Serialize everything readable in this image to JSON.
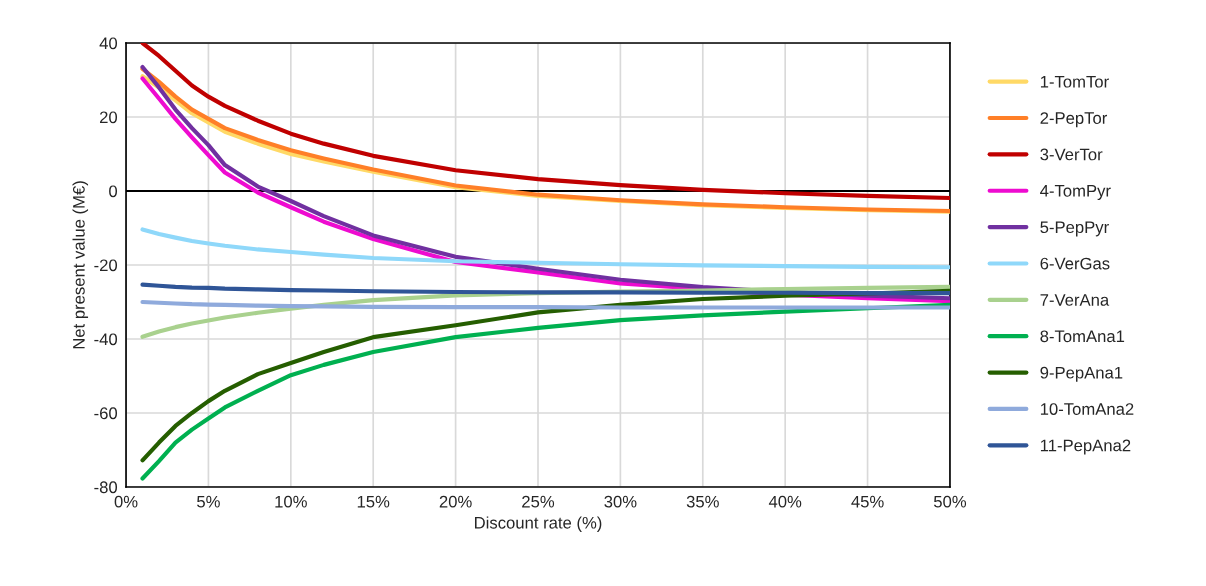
{
  "chart_data": {
    "type": "line",
    "xlabel": "Discount rate (%)",
    "ylabel": "Net present value (M€)",
    "x": [
      1,
      2,
      3,
      4,
      5,
      6,
      8,
      10,
      12,
      15,
      20,
      25,
      30,
      35,
      40,
      45,
      50
    ],
    "xlim": [
      0,
      50
    ],
    "xticks": [
      {
        "value": 0,
        "label": "0%"
      },
      {
        "value": 5,
        "label": "5%"
      },
      {
        "value": 10,
        "label": "10%"
      },
      {
        "value": 15,
        "label": "15%"
      },
      {
        "value": 20,
        "label": "20%"
      },
      {
        "value": 25,
        "label": "25%"
      },
      {
        "value": 30,
        "label": "30%"
      },
      {
        "value": 35,
        "label": "35%"
      },
      {
        "value": 40,
        "label": "40%"
      },
      {
        "value": 45,
        "label": "45%"
      },
      {
        "value": 50,
        "label": "50%"
      }
    ],
    "ylim": [
      -80,
      40
    ],
    "yticks": [
      -80,
      -60,
      -40,
      -20,
      0,
      20,
      40
    ],
    "grid": true,
    "legend": "right",
    "marker": "none",
    "line_style": "solid",
    "ref_lines": [
      {
        "axis": "y",
        "value": 0,
        "color": "#000000"
      }
    ],
    "series": [
      {
        "name": "1-TomTor",
        "color": "#ffd966",
        "values": [
          31,
          28,
          24.5,
          21,
          18.5,
          16,
          12.8,
          10,
          8,
          5.2,
          1,
          -1.3,
          -2.7,
          -3.8,
          -4.6,
          -5.2,
          -5.6
        ]
      },
      {
        "name": "2-PepTor",
        "color": "#ff7f27",
        "values": [
          33,
          29.5,
          25.5,
          22,
          19.5,
          17,
          13.8,
          11,
          8.8,
          5.8,
          1.5,
          -1,
          -2.5,
          -3.6,
          -4.4,
          -5,
          -5.4
        ]
      },
      {
        "name": "3-VerTor",
        "color": "#c00000",
        "values": [
          40,
          36.5,
          32.5,
          28.5,
          25.5,
          23,
          19,
          15.5,
          12.8,
          9.5,
          5.6,
          3.2,
          1.6,
          0.3,
          -0.6,
          -1.3,
          -1.9
        ]
      },
      {
        "name": "4-TomPyr",
        "color": "#ee0bd0",
        "values": [
          30.4,
          25,
          19.5,
          14.5,
          9.7,
          5,
          -0.4,
          -4.4,
          -8.3,
          -13,
          -19.2,
          -22,
          -25,
          -26.5,
          -28,
          -29,
          -29.8
        ]
      },
      {
        "name": "5-PepPyr",
        "color": "#7030a0",
        "values": [
          33.5,
          28,
          22,
          17,
          12.4,
          7,
          1.2,
          -2.7,
          -6.8,
          -12,
          -17.8,
          -21,
          -24,
          -26,
          -27.3,
          -28.3,
          -29
        ]
      },
      {
        "name": "6-VerGas",
        "color": "#8fd8fa",
        "values": [
          -10.4,
          -11.6,
          -12.6,
          -13.5,
          -14.2,
          -14.8,
          -15.8,
          -16.5,
          -17.2,
          -18.1,
          -19,
          -19.4,
          -19.8,
          -20.1,
          -20.3,
          -20.5,
          -20.6
        ]
      },
      {
        "name": "7-VerAna",
        "color": "#a9d18e",
        "values": [
          -39.4,
          -38,
          -36.8,
          -35.8,
          -35,
          -34.2,
          -32.9,
          -31.8,
          -30.8,
          -29.5,
          -28.2,
          -27.6,
          -27.2,
          -26.9,
          -26.5,
          -26.2,
          -25.9
        ]
      },
      {
        "name": "8-TomAna1",
        "color": "#00b050",
        "values": [
          -77.7,
          -73,
          -68,
          -64.5,
          -61.5,
          -58.5,
          -54,
          -49.8,
          -47,
          -43.5,
          -39.5,
          -37,
          -34.9,
          -33.6,
          -32.6,
          -31.7,
          -30.8
        ]
      },
      {
        "name": "9-PepAna1",
        "color": "#255e00",
        "values": [
          -72.8,
          -68,
          -63.5,
          -60,
          -56.8,
          -54,
          -49.5,
          -46.5,
          -43.5,
          -39.5,
          -36.3,
          -32.8,
          -30.8,
          -29.2,
          -28.3,
          -27.7,
          -27
        ]
      },
      {
        "name": "10-TomAna2",
        "color": "#8faadc",
        "values": [
          -30,
          -30.2,
          -30.4,
          -30.6,
          -30.7,
          -30.8,
          -31,
          -31.1,
          -31.2,
          -31.3,
          -31.4,
          -31.4,
          -31.5,
          -31.5,
          -31.5,
          -31.5,
          -31.5
        ]
      },
      {
        "name": "11-PepAna2",
        "color": "#2f5597",
        "values": [
          -25.3,
          -25.6,
          -25.9,
          -26.1,
          -26.2,
          -26.4,
          -26.6,
          -26.8,
          -26.9,
          -27.1,
          -27.3,
          -27.4,
          -27.4,
          -27.5,
          -27.5,
          -27.6,
          -27.6
        ]
      }
    ]
  }
}
